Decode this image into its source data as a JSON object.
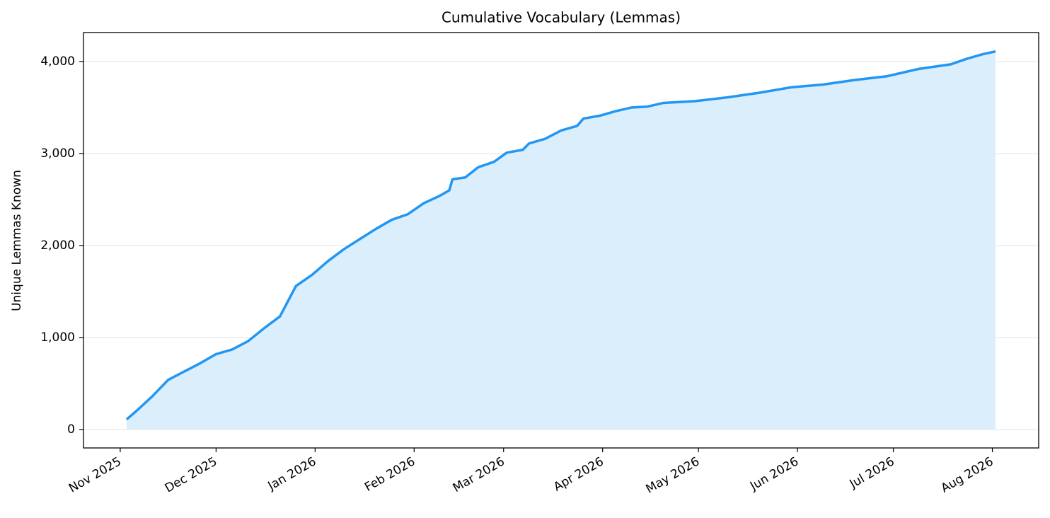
{
  "chart_data": {
    "type": "line",
    "title": "Cumulative Vocabulary (Lemmas)",
    "ylabel": "Unique Lemmas Known",
    "x": [
      2,
      5,
      10,
      15,
      20,
      25,
      30,
      35,
      40,
      45,
      50,
      55,
      60,
      65,
      70,
      75,
      80,
      85,
      90,
      95,
      100,
      103,
      104,
      108,
      112,
      117,
      121,
      126,
      128,
      133,
      138,
      143,
      145,
      150,
      155,
      160,
      165,
      170,
      180,
      190,
      200,
      210,
      220,
      230,
      240,
      250,
      260,
      265,
      270,
      274
    ],
    "series": [
      {
        "name": "Unique Lemmas Known",
        "color": "#2196f3",
        "fill": "#dbeefc",
        "values": [
          110,
          200,
          360,
          540,
          630,
          720,
          820,
          870,
          960,
          1100,
          1230,
          1560,
          1680,
          1830,
          1960,
          2070,
          2180,
          2280,
          2340,
          2460,
          2540,
          2600,
          2720,
          2740,
          2850,
          2910,
          3010,
          3040,
          3110,
          3160,
          3250,
          3300,
          3380,
          3410,
          3460,
          3500,
          3510,
          3550,
          3570,
          3610,
          3660,
          3720,
          3750,
          3800,
          3840,
          3920,
          3970,
          4030,
          4080,
          4110
        ]
      }
    ],
    "xlim": [
      -11.5,
      287.5
    ],
    "xticks": [
      {
        "value": 0,
        "label": "Nov 2025"
      },
      {
        "value": 30,
        "label": "Dec 2025"
      },
      {
        "value": 61,
        "label": "Jan 2026"
      },
      {
        "value": 92,
        "label": "Feb 2026"
      },
      {
        "value": 120,
        "label": "Mar 2026"
      },
      {
        "value": 151,
        "label": "Apr 2026"
      },
      {
        "value": 181,
        "label": "May 2026"
      },
      {
        "value": 212,
        "label": "Jun 2026"
      },
      {
        "value": 242,
        "label": "Jul 2026"
      },
      {
        "value": 273,
        "label": "Aug 2026"
      }
    ],
    "ylim": [
      -200,
      4315
    ],
    "yticks": [
      0,
      {
        "value": 1000,
        "label": "1,000"
      },
      {
        "value": 2000,
        "label": "2,000"
      },
      {
        "value": 3000,
        "label": "3,000"
      },
      {
        "value": 4000,
        "label": "4,000"
      }
    ],
    "grid": true
  }
}
